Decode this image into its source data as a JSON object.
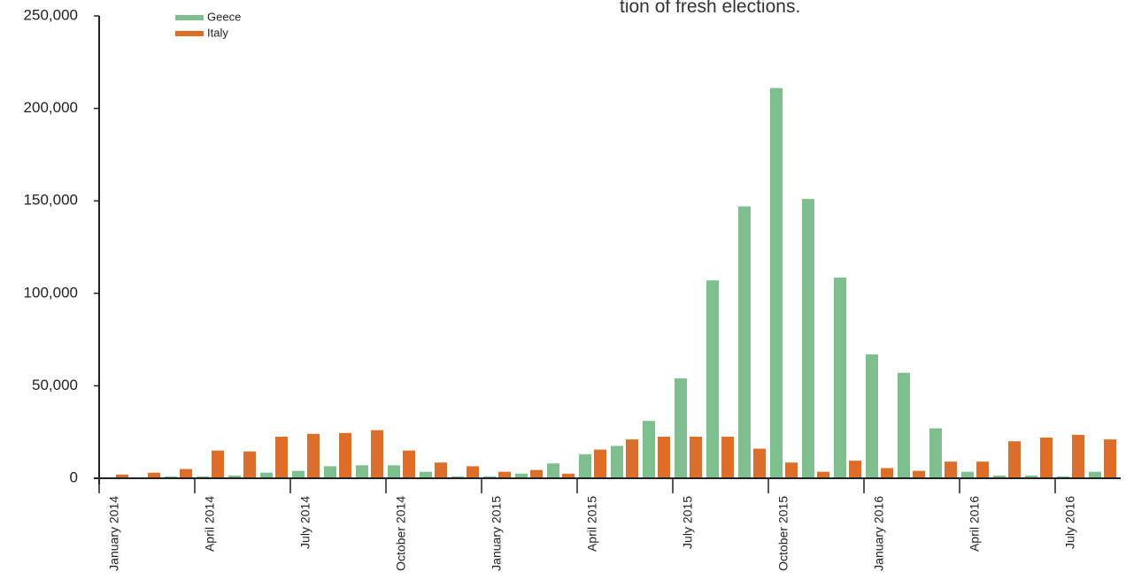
{
  "chart_data": {
    "type": "bar",
    "annotation": "tion of fresh elections.",
    "categories": [
      "January 2014",
      null,
      null,
      "April 2014",
      null,
      null,
      "July 2014",
      null,
      null,
      "October 2014",
      null,
      null,
      "January 2015",
      null,
      null,
      "April 2015",
      null,
      null,
      "July 2015",
      null,
      null,
      "October 2015",
      null,
      null,
      "January 2016",
      null,
      null,
      "April 2016",
      null,
      null,
      "July 2016",
      null
    ],
    "series": [
      {
        "name": "Geece",
        "color": "#7dbf8e",
        "values": [
          0,
          0,
          1000,
          1000,
          1500,
          3000,
          4000,
          6500,
          7000,
          7000,
          3500,
          1000,
          1000,
          2500,
          8000,
          13000,
          17500,
          31000,
          54000,
          107000,
          147000,
          211000,
          151000,
          108500,
          67000,
          57000,
          27000,
          3500,
          1500,
          1500,
          1000,
          3500
        ]
      },
      {
        "name": "Italy",
        "color": "#dd6e2a",
        "values": [
          2000,
          3000,
          5000,
          15000,
          14500,
          22500,
          24000,
          24500,
          26000,
          15000,
          8500,
          6500,
          3500,
          4500,
          2500,
          15500,
          21000,
          22500,
          22500,
          22500,
          16000,
          8500,
          3500,
          9500,
          5500,
          4000,
          9000,
          9000,
          20000,
          22000,
          23500,
          21000
        ]
      }
    ],
    "ylim": [
      0,
      250000
    ],
    "yticks": [
      0,
      {
        "value": 50000,
        "label": "50,000"
      },
      {
        "value": 100000,
        "label": "100,000"
      },
      {
        "value": 150000,
        "label": "150,000"
      },
      {
        "value": 200000,
        "label": "200,000"
      },
      {
        "value": 250000,
        "label": "250,000"
      }
    ],
    "grid": false
  }
}
